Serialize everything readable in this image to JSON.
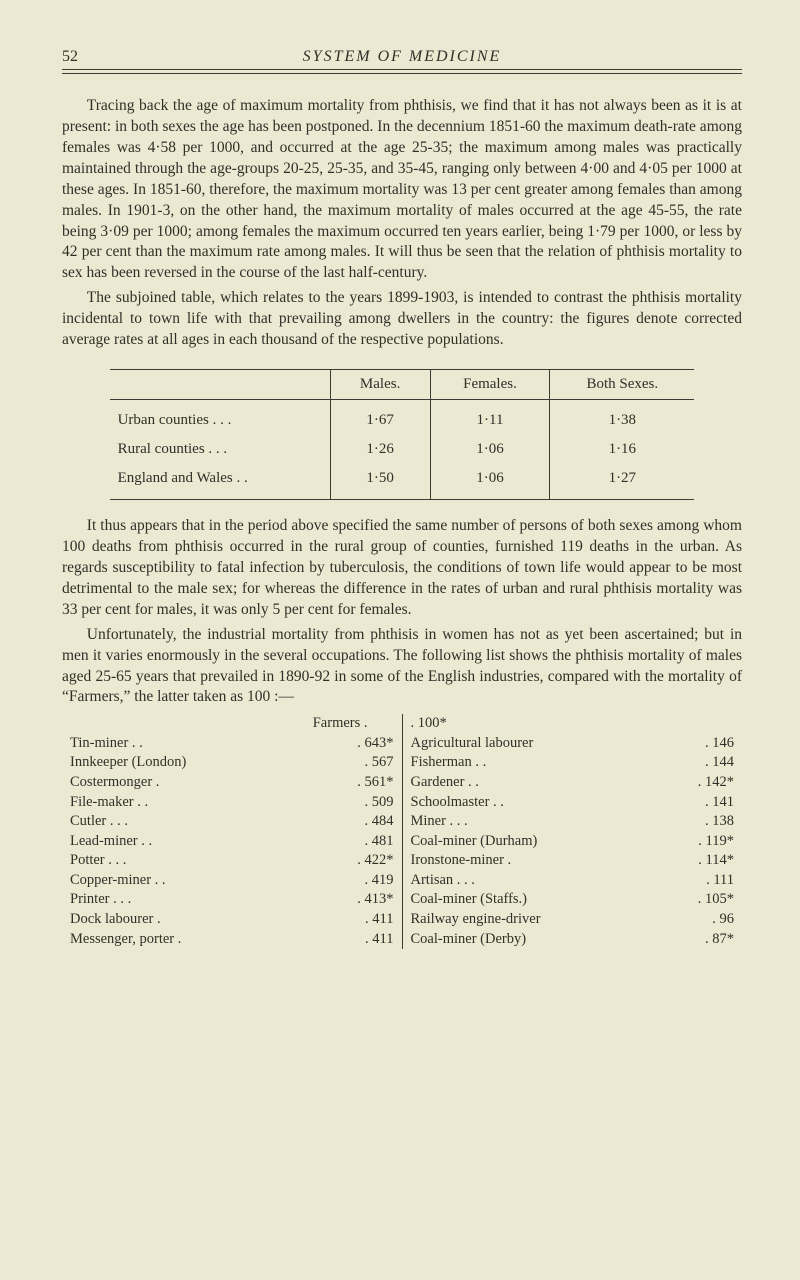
{
  "header": {
    "page_number": "52",
    "running_title": "SYSTEM OF MEDICINE"
  },
  "paragraphs": {
    "p1": "Tracing back the age of maximum mortality from phthisis, we find that it has not always been as it is at present: in both sexes the age has been postponed. In the decennium 1851-60 the maximum death-rate among females was 4·58 per 1000, and occurred at the age 25-35; the maximum among males was practically maintained through the age-groups 20-25, 25-35, and 35-45, ranging only between 4·00 and 4·05 per 1000 at these ages. In 1851-60, therefore, the maximum mortality was 13 per cent greater among females than among males. In 1901-3, on the other hand, the maximum mortality of males occurred at the age 45-55, the rate being 3·09 per 1000; among females the maximum occurred ten years earlier, being 1·79 per 1000, or less by 42 per cent than the maximum rate among males. It will thus be seen that the relation of phthisis mortality to sex has been reversed in the course of the last half-century.",
    "p2": "The subjoined table, which relates to the years 1899-1903, is intended to contrast the phthisis mortality incidental to town life with that prevailing among dwellers in the country: the figures denote corrected average rates at all ages in each thousand of the respective populations.",
    "p3": "It thus appears that in the period above specified the same number of persons of both sexes among whom 100 deaths from phthisis occurred in the rural group of counties, furnished 119 deaths in the urban. As regards susceptibility to fatal infection by tuberculosis, the conditions of town life would appear to be most detrimental to the male sex; for whereas the difference in the rates of urban and rural phthisis mortality was 33 per cent for males, it was only 5 per cent for females.",
    "p4": "Unfortunately, the industrial mortality from phthisis in women has not as yet been ascertained; but in men it varies enormously in the several occupations. The following list shows the phthisis mortality of males aged 25-65 years that prevailed in 1890-92 in some of the English industries, compared with the mortality of “Farmers,” the latter taken as 100 :—"
  },
  "table1": {
    "headers": [
      "",
      "Males.",
      "Females.",
      "Both Sexes."
    ],
    "rows": [
      [
        "Urban counties   .    .    .",
        "1·67",
        "1·11",
        "1·38"
      ],
      [
        "Rural counties    .    .    .",
        "1·26",
        "1·06",
        "1·16"
      ],
      [
        "England and Wales    .    .",
        "1·50",
        "1·06",
        "1·27"
      ]
    ]
  },
  "occupations": {
    "farmers_label": "Farmers   .",
    "farmers_value": ". 100*",
    "left": [
      {
        "label": "Tin-miner    .    .",
        "value": ".  643*"
      },
      {
        "label": "Innkeeper (London)",
        "value": ".  567"
      },
      {
        "label": "Costermonger    .",
        "value": ".  561*"
      },
      {
        "label": "File-maker   .    .",
        "value": ".  509"
      },
      {
        "label": "Cutler  .    .    .",
        "value": ".  484"
      },
      {
        "label": "Lead-miner  .    .",
        "value": ".  481"
      },
      {
        "label": "Potter  .    .    .",
        "value": ".  422*"
      },
      {
        "label": "Copper-miner .    .",
        "value": ".  419"
      },
      {
        "label": "Printer .    .    .",
        "value": ".  413*"
      },
      {
        "label": "Dock labourer    .",
        "value": ".  411"
      },
      {
        "label": "Messenger, porter .",
        "value": ".  411"
      }
    ],
    "right": [
      {
        "label": "Agricultural labourer",
        "value": ".  146"
      },
      {
        "label": "Fisherman    .    .",
        "value": ".  144"
      },
      {
        "label": "Gardener     .    .",
        "value": ".  142*"
      },
      {
        "label": "Schoolmaster .    .",
        "value": ".  141"
      },
      {
        "label": "Miner   .    .    .",
        "value": ".  138"
      },
      {
        "label": "Coal-miner (Durham)",
        "value": ".  119*"
      },
      {
        "label": "Ironstone-miner   .",
        "value": ".  114*"
      },
      {
        "label": "Artisan .    .    .",
        "value": ".  111"
      },
      {
        "label": "Coal-miner (Staffs.)",
        "value": ".  105*"
      },
      {
        "label": "Railway engine-driver",
        "value": ".   96"
      },
      {
        "label": "Coal-miner (Derby)",
        "value": ".   87*"
      }
    ]
  },
  "colors": {
    "background": "#ece9d2",
    "text": "#2f3028",
    "rule": "#3a3b32"
  }
}
